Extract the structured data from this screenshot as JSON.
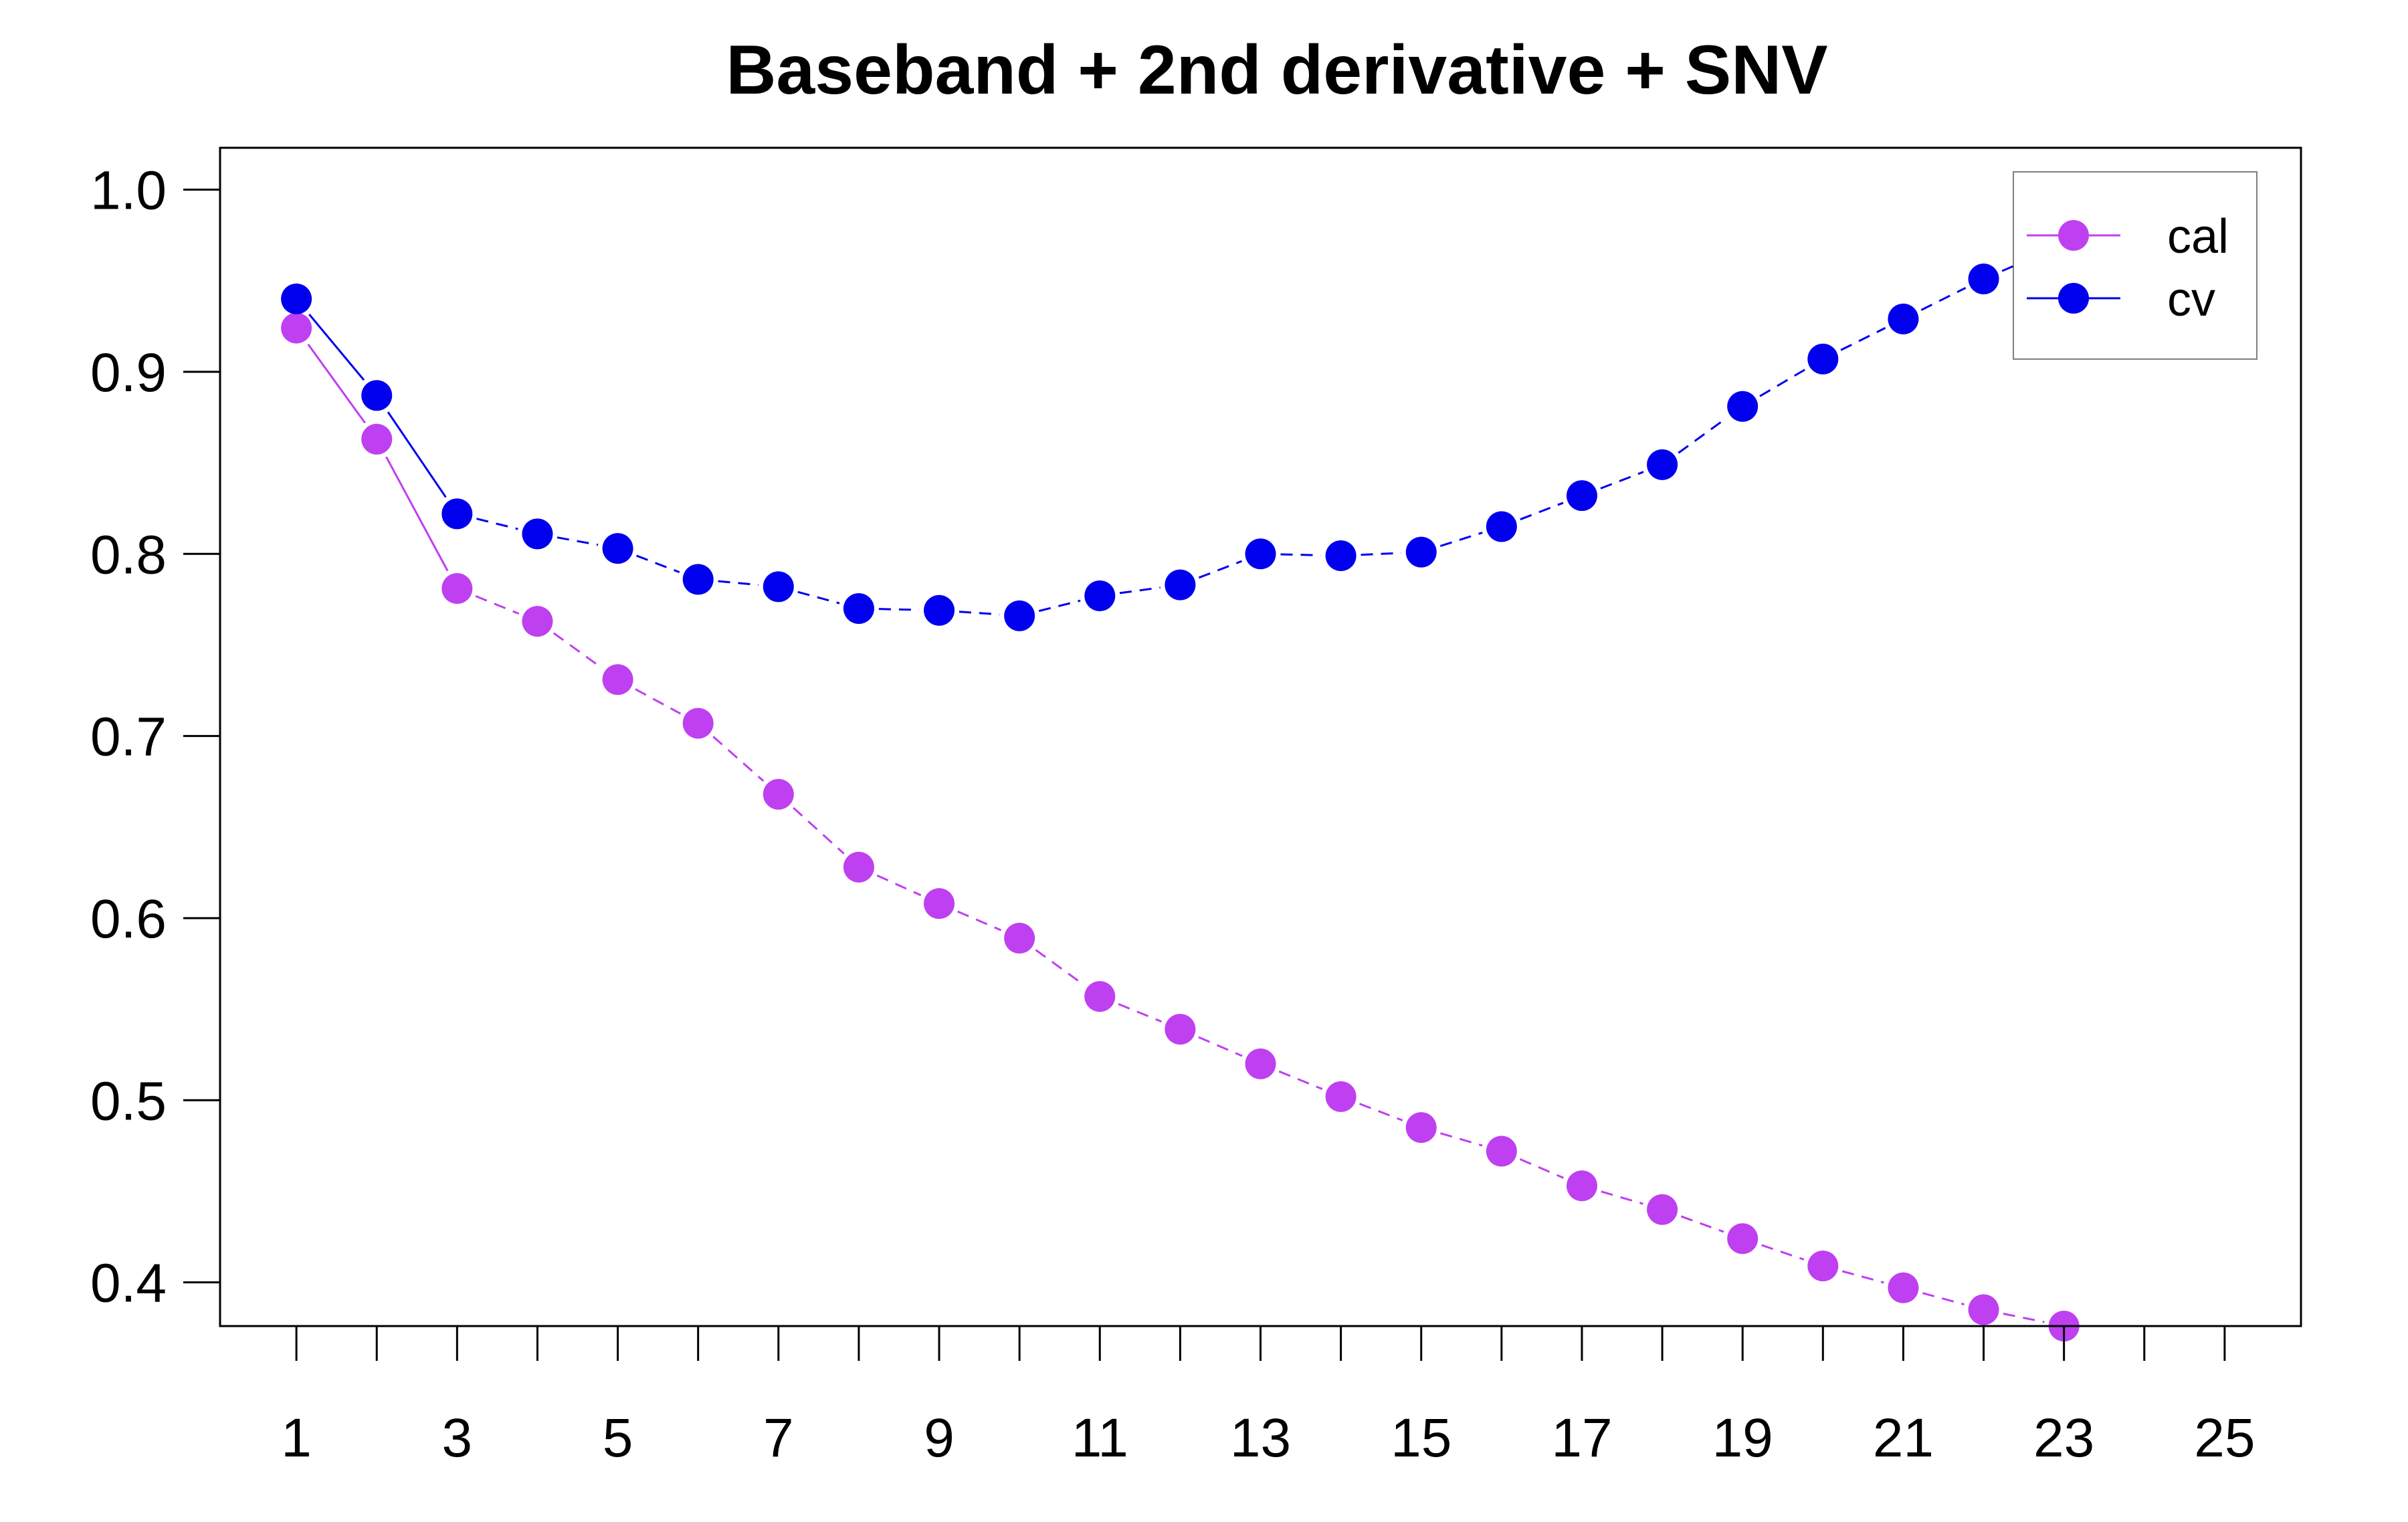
{
  "chart_data": {
    "type": "line",
    "title": "Baseband + 2nd derivative + SNV",
    "xlabel": "",
    "ylabel": "",
    "x": [
      1,
      2,
      3,
      4,
      5,
      6,
      7,
      8,
      9,
      10,
      11,
      12,
      13,
      14,
      15,
      16,
      17,
      18,
      19,
      20,
      21,
      22,
      23,
      24,
      25
    ],
    "xlim": [
      0.05,
      25.95
    ],
    "ylim": [
      0.376,
      1.023
    ],
    "xticks": [
      1,
      2,
      3,
      4,
      5,
      6,
      7,
      8,
      9,
      10,
      11,
      12,
      13,
      14,
      15,
      16,
      17,
      18,
      19,
      20,
      21,
      22,
      23,
      24,
      25
    ],
    "xtick_labels": [
      "1",
      "3",
      "5",
      "7",
      "9",
      "11",
      "13",
      "15",
      "17",
      "19",
      "21",
      "23",
      "25"
    ],
    "xtick_label_values": [
      1,
      3,
      5,
      7,
      9,
      11,
      13,
      15,
      17,
      19,
      21,
      23,
      25
    ],
    "yticks": [
      0.4,
      0.5,
      0.6,
      0.7,
      0.8,
      0.9,
      1.0
    ],
    "ytick_labels": [
      "0.4",
      "0.5",
      "0.6",
      "0.7",
      "0.8",
      "0.9",
      "1.0"
    ],
    "grid": false,
    "legend_position": "top-right",
    "series": [
      {
        "name": "cal",
        "color": "#BF40F0",
        "values": [
          0.924,
          0.863,
          0.781,
          0.763,
          0.731,
          0.707,
          0.668,
          0.628,
          0.608,
          0.589,
          0.557,
          0.539,
          0.52,
          0.502,
          0.485,
          0.472,
          0.453,
          0.44,
          0.424,
          0.409,
          0.397,
          0.385,
          0.376,
          null,
          null
        ]
      },
      {
        "name": "cv",
        "color": "#0000EE",
        "values": [
          0.94,
          0.887,
          0.822,
          0.811,
          0.803,
          0.786,
          0.782,
          0.77,
          0.769,
          0.766,
          0.777,
          0.783,
          0.8,
          0.799,
          0.801,
          0.815,
          0.832,
          0.849,
          0.881,
          0.907,
          0.929,
          0.951,
          0.97,
          null,
          null
        ]
      }
    ]
  }
}
